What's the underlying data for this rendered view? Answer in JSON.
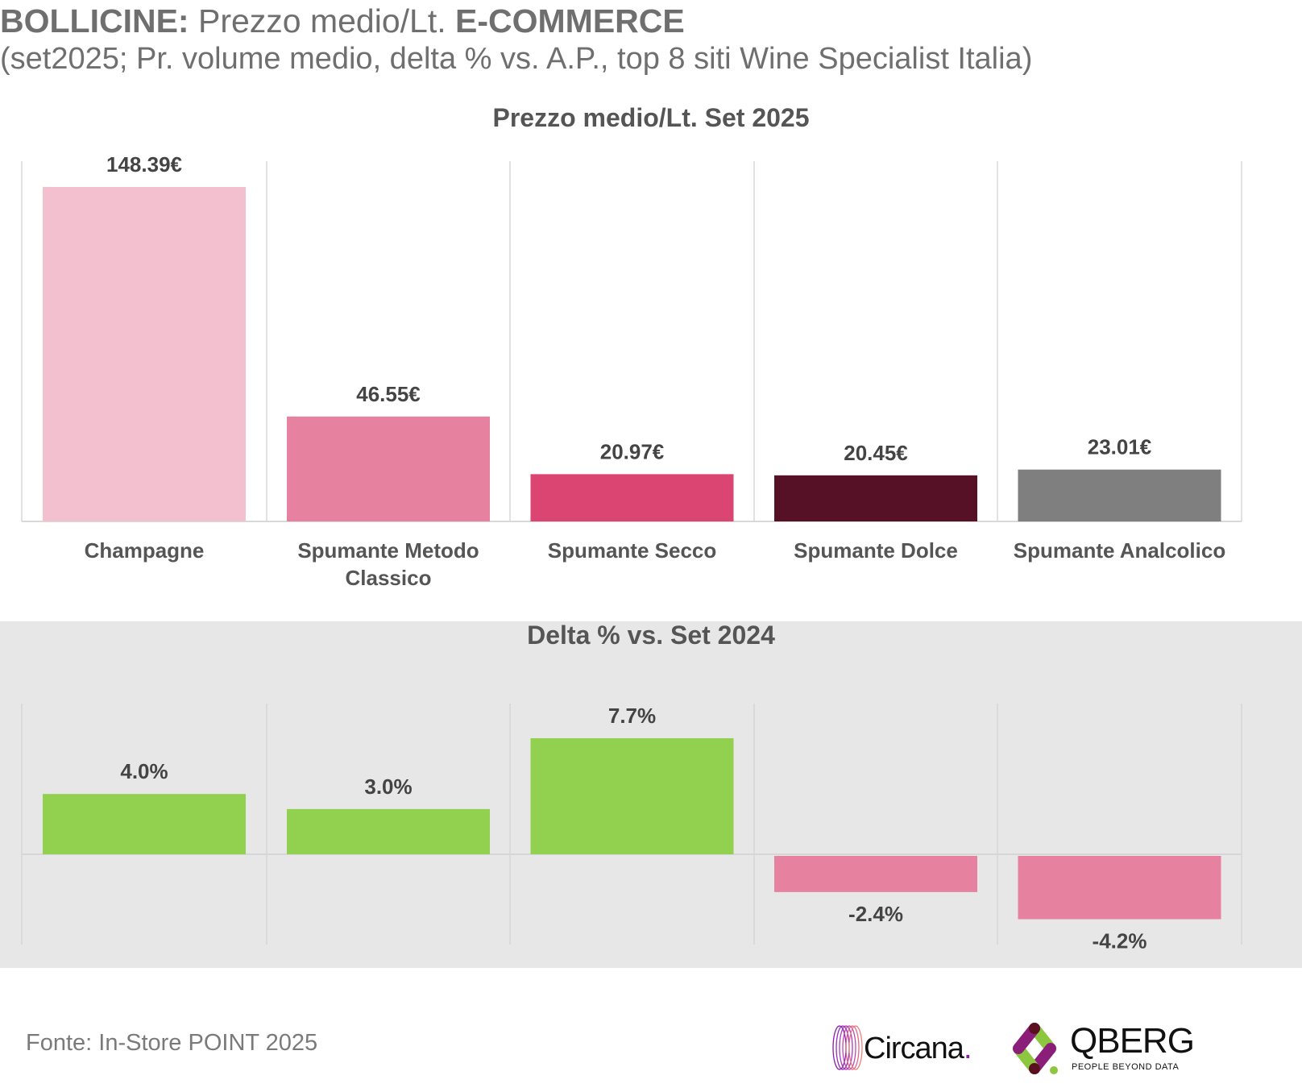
{
  "header": {
    "title_bold_1": "BOLLICINE:",
    "title_regular": " Prezzo medio/Lt. ",
    "title_bold_2": "E-COMMERCE",
    "subtitle": "(set2025; Pr. volume medio, delta % vs. A.P., top 8 siti Wine Specialist Italia)"
  },
  "footer": {
    "source": "Fonte: In-Store POINT 2025",
    "logos": [
      {
        "name": "Circana",
        "text": "Circana",
        "dot": "."
      },
      {
        "name": "QBERG",
        "text": "QBERG",
        "tagline": "PEOPLE BEYOND DATA"
      }
    ]
  },
  "colors": {
    "text_dark": "#555555",
    "gridline": "#d9d9d9",
    "panel_gray": "#e7e7e7",
    "positive": "#92d050",
    "negative": "#e6819f"
  },
  "chart_data": [
    {
      "type": "bar",
      "title": "Prezzo medio/Lt. Set 2025",
      "categories": [
        "Champagne",
        "Spumante Metodo Classico",
        "Spumante Secco",
        "Spumante Dolce",
        "Spumante Analcolico"
      ],
      "category_lines": [
        [
          "Champagne"
        ],
        [
          "Spumante Metodo",
          "Classico"
        ],
        [
          "Spumante Secco"
        ],
        [
          "Spumante Dolce"
        ],
        [
          "Spumante Analcolico"
        ]
      ],
      "values": [
        148.39,
        46.55,
        20.97,
        20.45,
        23.01
      ],
      "data_labels": [
        "148.39€",
        "46.55€",
        "20.97€",
        "20.45€",
        "23.01€"
      ],
      "bar_colors": [
        "#f3c0d0",
        "#e6819f",
        "#db4571",
        "#561127",
        "#7f7f7f"
      ],
      "unit": "€/Lt",
      "xlabel": "",
      "ylabel": "",
      "ylim": [
        0,
        160
      ],
      "grid": "vertical separators",
      "legend": "none"
    },
    {
      "type": "bar",
      "title": "Delta % vs. Set 2024",
      "categories": [
        "Champagne",
        "Spumante Metodo Classico",
        "Spumante Secco",
        "Spumante Dolce",
        "Spumante Analcolico"
      ],
      "values": [
        4.0,
        3.0,
        7.7,
        -2.4,
        -4.2
      ],
      "data_labels": [
        "4.0%",
        "3.0%",
        "7.7%",
        "-2.4%",
        "-4.2%"
      ],
      "unit": "%",
      "xlabel": "",
      "ylabel": "",
      "ylim": [
        -6,
        10
      ],
      "grid": "vertical separators, zero line",
      "legend": "none"
    }
  ]
}
